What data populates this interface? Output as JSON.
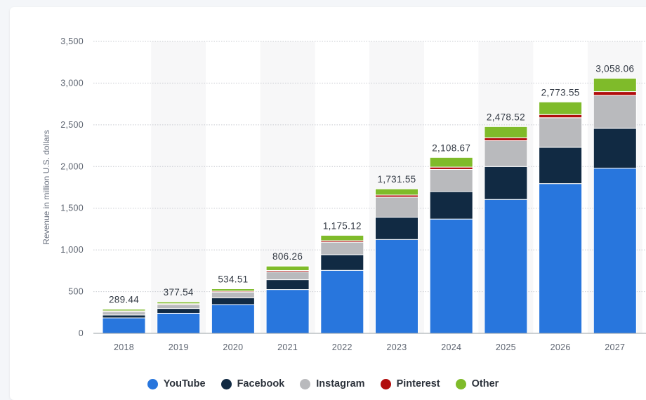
{
  "chart_data": {
    "type": "bar",
    "stacked": true,
    "ylabel": "Revenue in million U.S. dollars",
    "xlabel": "",
    "ylim": [
      0,
      3500
    ],
    "yticks": [
      0,
      500,
      1000,
      1500,
      2000,
      2500,
      3000,
      3500
    ],
    "ytick_labels": [
      "0",
      "500",
      "1,000",
      "1,500",
      "2,000",
      "2,500",
      "3,000",
      "3,500"
    ],
    "categories": [
      "2018",
      "2019",
      "2020",
      "2021",
      "2022",
      "2023",
      "2024",
      "2025",
      "2026",
      "2027"
    ],
    "totals": [
      "289.44",
      "377.54",
      "534.51",
      "806.26",
      "1,175.12",
      "1,731.55",
      "2,108.67",
      "2,478.52",
      "2,773.55",
      "3,058.06"
    ],
    "series": [
      {
        "name": "YouTube",
        "color": "#2876dd",
        "values": [
          185,
          240,
          345,
          525,
          755,
          1125,
          1370,
          1605,
          1795,
          1980
        ]
      },
      {
        "name": "Facebook",
        "color": "#112a43",
        "values": [
          35,
          58,
          80,
          118,
          188,
          268,
          330,
          395,
          435,
          478
        ]
      },
      {
        "name": "Instagram",
        "color": "#b9babd",
        "values": [
          40,
          47,
          70,
          95,
          150,
          240,
          265,
          310,
          355,
          395
        ]
      },
      {
        "name": "Pinterest",
        "color": "#b10d0d",
        "values": [
          9,
          10,
          12,
          15,
          18,
          25,
          28,
          35,
          38,
          45
        ]
      },
      {
        "name": "Other",
        "color": "#7fbb2a",
        "values": [
          20,
          22,
          27,
          53,
          64,
          74,
          116,
          134,
          151,
          160
        ]
      }
    ],
    "grid": true,
    "legend_position": "bottom-center"
  }
}
